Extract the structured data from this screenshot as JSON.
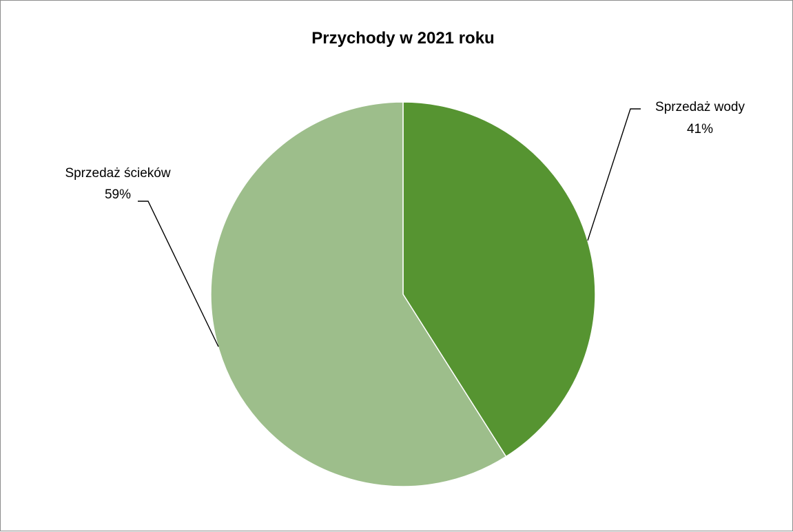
{
  "chart_data": {
    "type": "pie",
    "title": "Przychody w 2021 roku",
    "slices": [
      {
        "name": "Sprzedaż wody",
        "value": 41,
        "value_label": "41%",
        "color": "#569431"
      },
      {
        "name": "Sprzedaż ścieków",
        "value": 59,
        "value_label": "59%",
        "color": "#9dbe8b"
      }
    ],
    "start": "12 o'clock",
    "direction": "clockwise",
    "legend": "none",
    "data_labels": "outside with leader lines"
  }
}
